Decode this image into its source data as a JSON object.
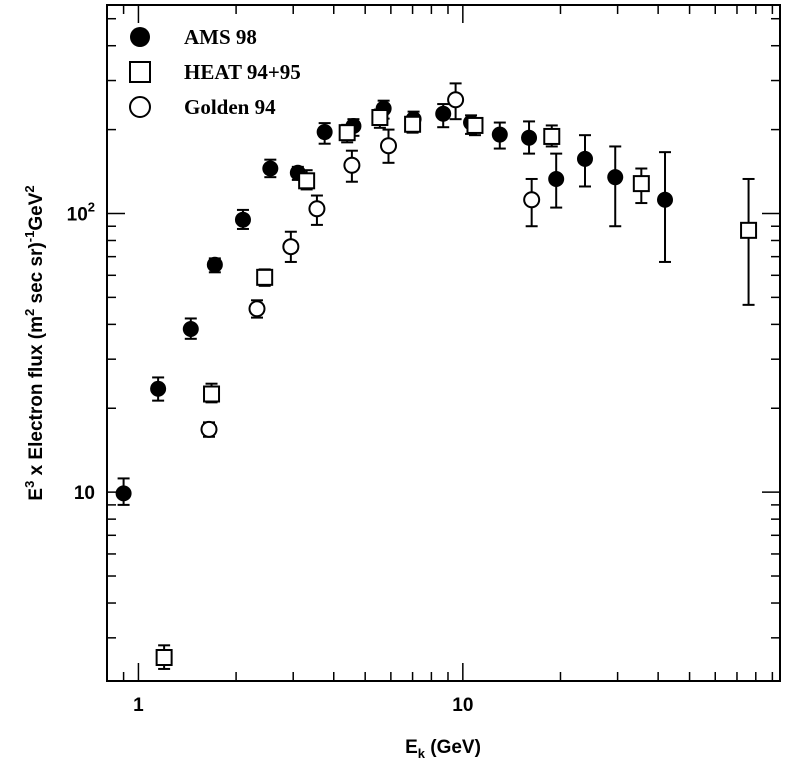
{
  "chart_data": {
    "type": "scatter",
    "title": "",
    "xlabel": {
      "main": "E",
      "sub": "k",
      "rest": " (GeV)"
    },
    "ylabel": {
      "p1": "E",
      "s1": "3",
      "p2": " x Electron flux (m",
      "s2": "2",
      "p3": " sec sr)",
      "s3": "-1",
      "p4": "GeV",
      "s4": "2"
    },
    "xscale": "log",
    "yscale": "log",
    "xlim": [
      0.8,
      95
    ],
    "ylim": [
      2.1,
      560
    ],
    "grid": false,
    "legend_position": "top-left",
    "x_tick_labels": [
      {
        "value": 1,
        "label": "1"
      },
      {
        "value": 10,
        "label": "10"
      }
    ],
    "y_tick_labels": [
      {
        "value": 10,
        "label": "10",
        "exp": ""
      },
      {
        "value": 100,
        "label": "10",
        "exp": "2"
      }
    ],
    "series": [
      {
        "name": "AMS 98",
        "marker": "filled-circle",
        "points": [
          {
            "x": 0.9,
            "y": 9.9,
            "lo": 9.0,
            "hi": 11.2
          },
          {
            "x": 1.15,
            "y": 23.5,
            "lo": 21.3,
            "hi": 25.8
          },
          {
            "x": 1.45,
            "y": 38.5,
            "lo": 35.5,
            "hi": 42.0
          },
          {
            "x": 1.72,
            "y": 65.5,
            "lo": 61.5,
            "hi": 69.0
          },
          {
            "x": 2.1,
            "y": 95,
            "lo": 88,
            "hi": 103
          },
          {
            "x": 2.55,
            "y": 145,
            "lo": 135,
            "hi": 156
          },
          {
            "x": 3.1,
            "y": 140,
            "lo": 132,
            "hi": 147
          },
          {
            "x": 3.75,
            "y": 196,
            "lo": 178,
            "hi": 211
          },
          {
            "x": 4.6,
            "y": 206,
            "lo": 190,
            "hi": 218
          },
          {
            "x": 5.7,
            "y": 238,
            "lo": 219,
            "hi": 254
          },
          {
            "x": 7.05,
            "y": 218,
            "lo": 200,
            "hi": 232
          },
          {
            "x": 8.7,
            "y": 228,
            "lo": 204,
            "hi": 247
          },
          {
            "x": 10.6,
            "y": 212,
            "lo": 193,
            "hi": 225
          },
          {
            "x": 13.0,
            "y": 192,
            "lo": 171,
            "hi": 212
          },
          {
            "x": 16.0,
            "y": 187,
            "lo": 164,
            "hi": 214
          },
          {
            "x": 19.4,
            "y": 133,
            "lo": 105,
            "hi": 164
          },
          {
            "x": 23.8,
            "y": 157,
            "lo": 125,
            "hi": 191
          },
          {
            "x": 29.5,
            "y": 135,
            "lo": 90,
            "hi": 174
          },
          {
            "x": 42.0,
            "y": 112,
            "lo": 67,
            "hi": 166
          }
        ]
      },
      {
        "name": "HEAT 94+95",
        "marker": "open-square",
        "points": [
          {
            "x": 1.2,
            "y": 2.55,
            "lo": 2.32,
            "hi": 2.82
          },
          {
            "x": 1.68,
            "y": 22.5,
            "lo": 21.0,
            "hi": 24.5
          },
          {
            "x": 2.45,
            "y": 59,
            "lo": 55,
            "hi": 63
          },
          {
            "x": 3.3,
            "y": 131,
            "lo": 122,
            "hi": 143
          },
          {
            "x": 4.4,
            "y": 195,
            "lo": 180,
            "hi": 208
          },
          {
            "x": 5.55,
            "y": 221,
            "lo": 203,
            "hi": 236
          },
          {
            "x": 7.0,
            "y": 209,
            "lo": 195,
            "hi": 221
          },
          {
            "x": 10.9,
            "y": 207,
            "lo": 191,
            "hi": 219
          },
          {
            "x": 18.8,
            "y": 189,
            "lo": 174,
            "hi": 207
          },
          {
            "x": 35.5,
            "y": 128,
            "lo": 109,
            "hi": 145
          },
          {
            "x": 76.0,
            "y": 87,
            "lo": 47,
            "hi": 133
          }
        ]
      },
      {
        "name": "Golden 94",
        "marker": "open-circle",
        "points": [
          {
            "x": 1.65,
            "y": 16.8,
            "lo": 15.8,
            "hi": 17.8
          },
          {
            "x": 2.32,
            "y": 45.5,
            "lo": 42.3,
            "hi": 48.8
          },
          {
            "x": 2.95,
            "y": 76,
            "lo": 67,
            "hi": 86
          },
          {
            "x": 3.55,
            "y": 104,
            "lo": 91,
            "hi": 116
          },
          {
            "x": 4.55,
            "y": 149,
            "lo": 130,
            "hi": 168
          },
          {
            "x": 5.9,
            "y": 175,
            "lo": 152,
            "hi": 200
          },
          {
            "x": 9.5,
            "y": 256,
            "lo": 218,
            "hi": 293
          },
          {
            "x": 16.3,
            "y": 112,
            "lo": 90,
            "hi": 133
          }
        ]
      }
    ]
  }
}
